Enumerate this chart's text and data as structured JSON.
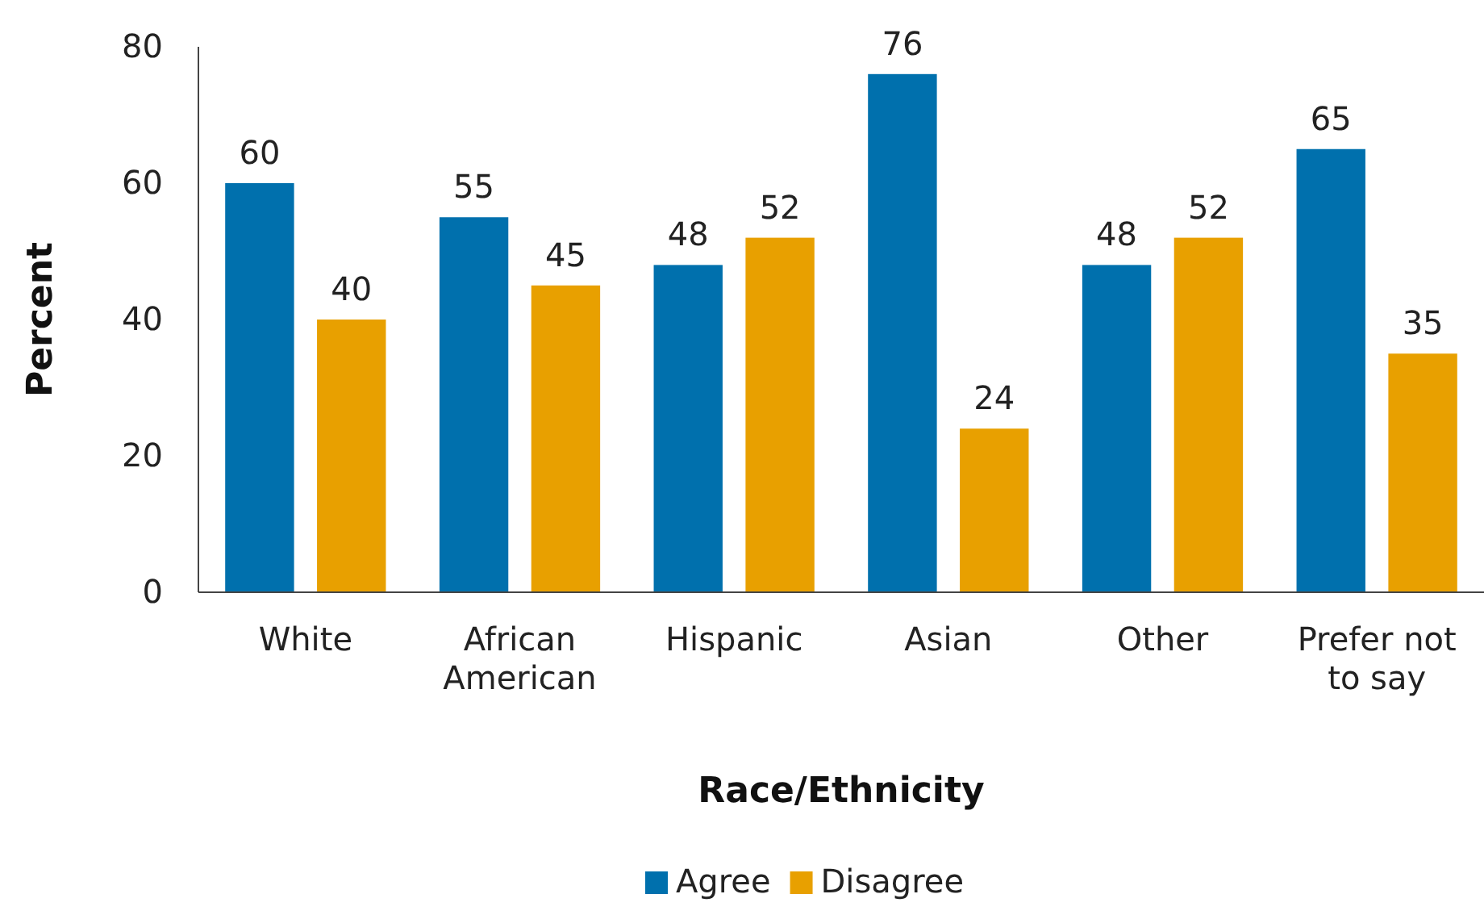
{
  "chart_data": {
    "type": "bar",
    "xlabel": "Race/Ethnicity",
    "ylabel": "Percent",
    "categories": [
      "White",
      "African American",
      "Hispanic",
      "Asian",
      "Other",
      "Prefer not to say"
    ],
    "series": [
      {
        "name": "Agree",
        "color": "#0070ad",
        "values": [
          60,
          55,
          48,
          76,
          48,
          65
        ]
      },
      {
        "name": "Disagree",
        "color": "#e8a000",
        "values": [
          40,
          45,
          52,
          24,
          52,
          35
        ]
      }
    ],
    "ylim": [
      0,
      80
    ],
    "yticks": [
      0,
      20,
      40,
      60,
      80
    ],
    "grid": false,
    "legend": "bottom",
    "data_labels": true
  }
}
